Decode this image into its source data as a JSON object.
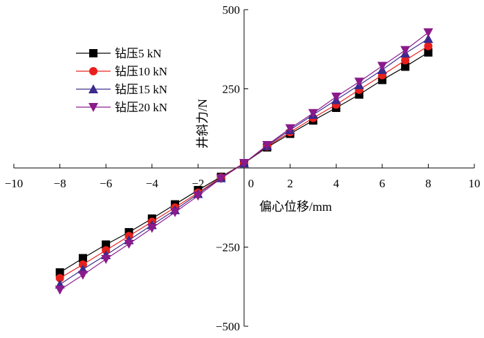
{
  "chart_data": {
    "type": "line",
    "x_axis": {
      "label": "偏心位移/mm",
      "range": [
        -10,
        10
      ],
      "ticks": [
        -10,
        -8,
        -6,
        -4,
        -2,
        0,
        2,
        4,
        6,
        8,
        10
      ],
      "tick_labels": [
        "−10",
        "−8",
        "−6",
        "−4",
        "−2",
        "0",
        "2",
        "4",
        "6",
        "8",
        "10"
      ]
    },
    "y_axis": {
      "label": "井斜力/N",
      "range": [
        -500,
        500
      ],
      "ticks": [
        -500,
        -250,
        250,
        500
      ],
      "tick_labels": [
        "−500",
        "−250",
        "250",
        "500"
      ]
    },
    "x": [
      -8,
      -7,
      -6,
      -5,
      -4,
      -3,
      -2,
      -1,
      0,
      1,
      2,
      3,
      4,
      5,
      6,
      7,
      8
    ],
    "series": [
      {
        "name": "钻压5 kN",
        "color": "#000000",
        "marker": "square",
        "values": [
          -330,
          -285,
          -242,
          -203,
          -160,
          -115,
          -70,
          -28,
          15,
          65,
          108,
          150,
          190,
          232,
          278,
          320,
          365
        ]
      },
      {
        "name": "钻压10 kN",
        "color": "#e8201c",
        "marker": "circle",
        "values": [
          -348,
          -305,
          -260,
          -215,
          -170,
          -125,
          -78,
          -30,
          15,
          68,
          113,
          158,
          200,
          247,
          293,
          340,
          385
        ]
      },
      {
        "name": "钻压15 kN",
        "color": "#3a2a8c",
        "marker": "triangle-up",
        "values": [
          -368,
          -320,
          -275,
          -228,
          -180,
          -133,
          -82,
          -32,
          15,
          70,
          120,
          168,
          215,
          262,
          310,
          362,
          408
        ]
      },
      {
        "name": "钻压20 kN",
        "color": "#8b1a8b",
        "marker": "triangle-down",
        "values": [
          -385,
          -338,
          -288,
          -240,
          -190,
          -140,
          -88,
          -33,
          15,
          72,
          125,
          173,
          225,
          272,
          322,
          372,
          428
        ]
      }
    ],
    "legend_position": "top-left",
    "grid": false
  }
}
